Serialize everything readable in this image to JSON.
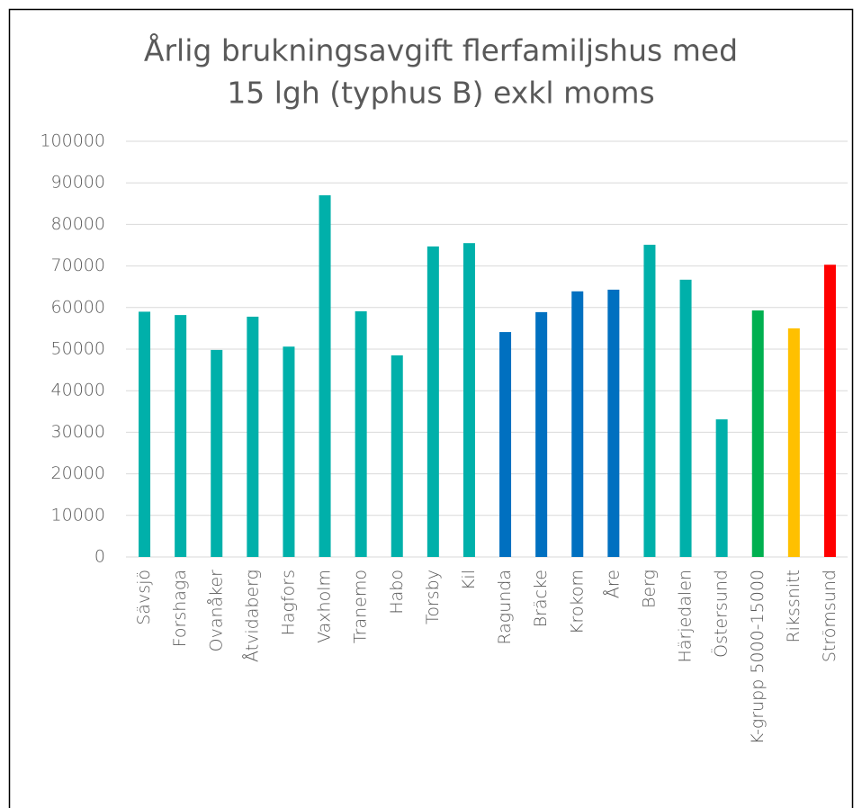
{
  "chart_data": {
    "type": "bar",
    "title": [
      "Årlig brukningsavgift flerfamiljshus med",
      "15 lgh (typhus B) exkl moms"
    ],
    "categories": [
      "Sävsjö",
      "Forshaga",
      "Ovanåker",
      "Åtvidaberg",
      "Hagfors",
      "Vaxholm",
      "Tranemo",
      "Habo",
      "Torsby",
      "Kil",
      "Ragunda",
      "Bräcke",
      "Krokom",
      "Åre",
      "Berg",
      "Härjedalen",
      "Östersund",
      "K-grupp 5000-15000",
      "Rikssnitt",
      "Strömsund"
    ],
    "values": [
      59000,
      58200,
      49800,
      57800,
      50600,
      87000,
      59100,
      48500,
      74700,
      75500,
      54100,
      58900,
      63900,
      64300,
      75100,
      66700,
      33100,
      59300,
      55000,
      70300
    ],
    "colors": [
      "#00b0aa",
      "#00b0aa",
      "#00b0aa",
      "#00b0aa",
      "#00b0aa",
      "#00b0aa",
      "#00b0aa",
      "#00b0aa",
      "#00b0aa",
      "#00b0aa",
      "#0070c0",
      "#0070c0",
      "#0070c0",
      "#0070c0",
      "#00b0aa",
      "#00b0aa",
      "#00b0aa",
      "#00b050",
      "#ffc000",
      "#ff0000"
    ],
    "ylim": [
      0,
      100000
    ],
    "yticks": [
      0,
      10000,
      20000,
      30000,
      40000,
      50000,
      60000,
      70000,
      80000,
      90000,
      100000
    ],
    "grid": true
  }
}
